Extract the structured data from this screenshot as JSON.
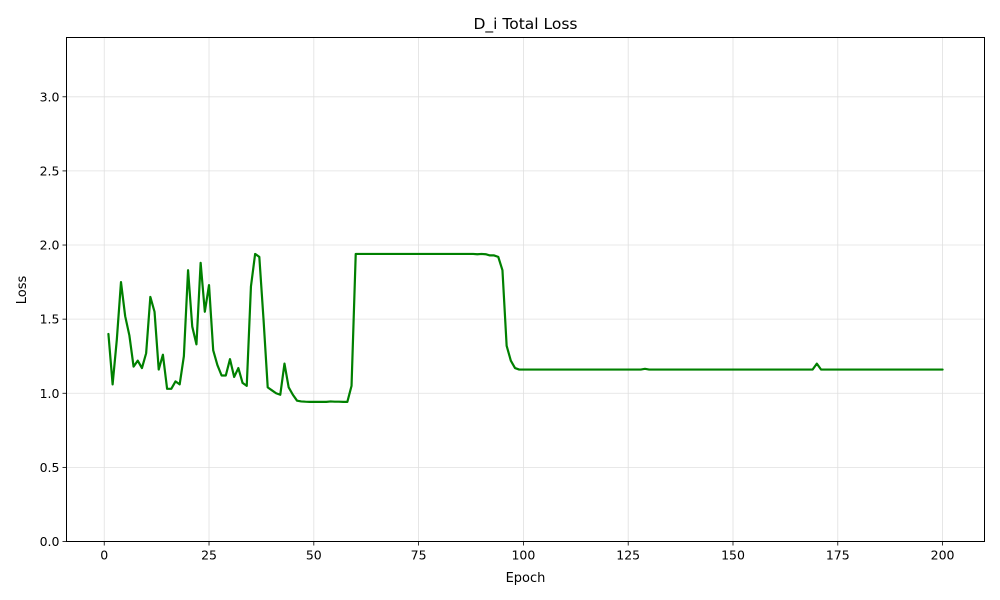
{
  "chart_data": {
    "type": "line",
    "title": "D_i Total Loss",
    "xlabel": "Epoch",
    "ylabel": "Loss",
    "xlim": [
      -9,
      210
    ],
    "ylim": [
      0,
      3.4
    ],
    "xticks": [
      0,
      25,
      50,
      75,
      100,
      125,
      150,
      175,
      200
    ],
    "yticks": [
      0.0,
      0.5,
      1.0,
      1.5,
      2.0,
      2.5,
      3.0
    ],
    "xtick_labels": [
      "0",
      "25",
      "50",
      "75",
      "100",
      "125",
      "150",
      "175",
      "200"
    ],
    "ytick_labels": [
      "0.0",
      "0.5",
      "1.0",
      "1.5",
      "2.0",
      "2.5",
      "3.0"
    ],
    "grid": true,
    "series": [
      {
        "color": "#008000",
        "x": [
          1,
          2,
          3,
          4,
          5,
          6,
          7,
          8,
          9,
          10,
          11,
          12,
          13,
          14,
          15,
          16,
          17,
          18,
          19,
          20,
          21,
          22,
          23,
          24,
          25,
          26,
          27,
          28,
          29,
          30,
          31,
          32,
          33,
          34,
          35,
          36,
          37,
          38,
          39,
          40,
          41,
          42,
          43,
          44,
          45,
          46,
          47,
          48,
          49,
          50,
          51,
          52,
          53,
          54,
          55,
          56,
          57,
          58,
          59,
          60,
          61,
          62,
          63,
          64,
          65,
          66,
          67,
          68,
          69,
          70,
          71,
          72,
          73,
          74,
          75,
          76,
          77,
          78,
          79,
          80,
          81,
          82,
          83,
          84,
          85,
          86,
          87,
          88,
          89,
          90,
          91,
          92,
          93,
          94,
          95,
          96,
          97,
          98,
          99,
          100,
          101,
          102,
          103,
          104,
          105,
          106,
          107,
          108,
          109,
          110,
          111,
          112,
          113,
          114,
          115,
          116,
          117,
          118,
          119,
          120,
          121,
          122,
          123,
          124,
          125,
          126,
          127,
          128,
          129,
          130,
          131,
          132,
          133,
          134,
          135,
          136,
          137,
          138,
          139,
          140,
          141,
          142,
          143,
          144,
          145,
          146,
          147,
          148,
          149,
          150,
          151,
          152,
          153,
          154,
          155,
          156,
          157,
          158,
          159,
          160,
          161,
          162,
          163,
          164,
          165,
          166,
          167,
          168,
          169,
          170,
          171,
          172,
          173,
          174,
          175,
          176,
          177,
          178,
          179,
          180,
          181,
          182,
          183,
          184,
          185,
          186,
          187,
          188,
          189,
          190,
          191,
          192,
          193,
          194,
          195,
          196,
          197,
          198,
          199,
          200
        ],
        "y": [
          1.4,
          1.06,
          1.36,
          1.75,
          1.52,
          1.39,
          1.18,
          1.22,
          1.17,
          1.27,
          1.65,
          1.55,
          1.16,
          1.26,
          1.03,
          1.03,
          1.08,
          1.06,
          1.25,
          1.83,
          1.45,
          1.33,
          1.88,
          1.55,
          1.73,
          1.29,
          1.19,
          1.12,
          1.12,
          1.23,
          1.11,
          1.17,
          1.07,
          1.05,
          1.72,
          1.94,
          1.92,
          1.5,
          1.04,
          1.02,
          1.0,
          0.99,
          1.2,
          1.04,
          0.99,
          0.95,
          0.945,
          0.943,
          0.942,
          0.942,
          0.942,
          0.942,
          0.942,
          0.945,
          0.943,
          0.943,
          0.942,
          0.942,
          1.05,
          1.94,
          1.94,
          1.94,
          1.94,
          1.94,
          1.94,
          1.94,
          1.94,
          1.94,
          1.94,
          1.94,
          1.94,
          1.94,
          1.94,
          1.94,
          1.94,
          1.94,
          1.94,
          1.94,
          1.94,
          1.94,
          1.94,
          1.94,
          1.94,
          1.94,
          1.94,
          1.94,
          1.94,
          1.94,
          1.938,
          1.94,
          1.938,
          1.93,
          1.93,
          1.92,
          1.83,
          1.32,
          1.22,
          1.17,
          1.16,
          1.16,
          1.16,
          1.16,
          1.16,
          1.16,
          1.16,
          1.16,
          1.16,
          1.16,
          1.16,
          1.16,
          1.16,
          1.16,
          1.16,
          1.16,
          1.16,
          1.16,
          1.16,
          1.16,
          1.16,
          1.16,
          1.16,
          1.16,
          1.16,
          1.16,
          1.16,
          1.16,
          1.16,
          1.16,
          1.165,
          1.16,
          1.16,
          1.16,
          1.16,
          1.16,
          1.16,
          1.16,
          1.16,
          1.16,
          1.16,
          1.16,
          1.16,
          1.16,
          1.16,
          1.16,
          1.16,
          1.16,
          1.16,
          1.16,
          1.16,
          1.16,
          1.16,
          1.16,
          1.16,
          1.16,
          1.16,
          1.16,
          1.16,
          1.16,
          1.16,
          1.16,
          1.16,
          1.16,
          1.16,
          1.16,
          1.16,
          1.16,
          1.16,
          1.16,
          1.16,
          1.2,
          1.16,
          1.16,
          1.16,
          1.16,
          1.16,
          1.16,
          1.16,
          1.16,
          1.16,
          1.16,
          1.16,
          1.16,
          1.16,
          1.16,
          1.16,
          1.16,
          1.16,
          1.16,
          1.16,
          1.16,
          1.16,
          1.16,
          1.16,
          1.16,
          1.16,
          1.16,
          1.16,
          1.16,
          1.16,
          1.16
        ]
      }
    ]
  }
}
